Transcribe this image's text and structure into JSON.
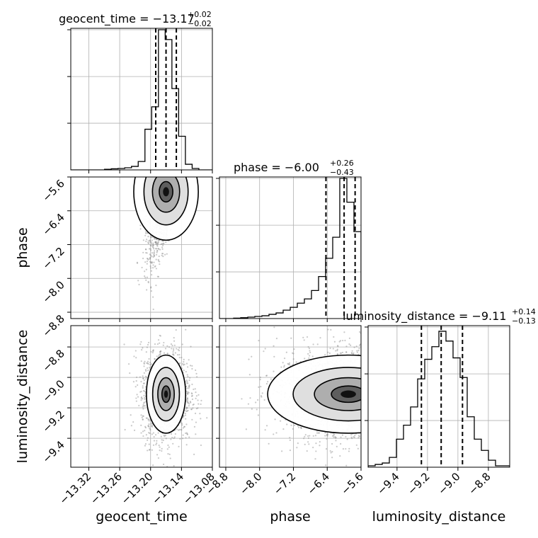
{
  "chart_data": {
    "type": "corner",
    "parameters": [
      "geocent_time",
      "phase",
      "luminosity_distance"
    ],
    "titles": [
      {
        "param": "geocent_time",
        "text": "geocent_time = −13.17",
        "plus": "+0.02",
        "minus": "−0.02"
      },
      {
        "param": "phase",
        "text": "phase = −6.00",
        "plus": "+0.26",
        "minus": "−0.43"
      },
      {
        "param": "luminosity_distance",
        "text": "luminosity_distance = −9.11",
        "plus": "+0.14",
        "minus": "−0.13"
      }
    ],
    "axis_labels": {
      "x": [
        "geocent_time",
        "phase",
        "luminosity_distance"
      ],
      "y": [
        "phase",
        "luminosity_distance"
      ]
    },
    "ranges": {
      "geocent_time": [
        -13.355,
        -13.08
      ],
      "phase": [
        -8.95,
        -5.6
      ],
      "luminosity_distance": [
        -9.59,
        -8.66
      ]
    },
    "ticks": {
      "geocent_time": {
        "values": [
          -13.32,
          -13.26,
          -13.2,
          -13.14,
          -13.08
        ],
        "labels": [
          "−13.32",
          "−13.26",
          "−13.20",
          "−13.14",
          "−13.08"
        ]
      },
      "phase": {
        "values": [
          -8.8,
          -8.0,
          -7.2,
          -6.4,
          -5.6
        ],
        "labels": [
          "−8.8",
          "−8.0",
          "−7.2",
          "−6.4",
          "−5.6"
        ]
      },
      "luminosity_distance": {
        "values": [
          -9.4,
          -9.2,
          -9.0,
          -8.8
        ],
        "labels": [
          "−9.4",
          "−9.2",
          "−9.0",
          "−8.8"
        ]
      }
    },
    "quantiles": {
      "geocent_time": [
        -13.19,
        -13.17,
        -13.15
      ],
      "phase": [
        -6.43,
        -6.0,
        -5.74
      ],
      "luminosity_distance": [
        -9.24,
        -9.11,
        -8.97
      ]
    },
    "histograms": {
      "geocent_time": [
        0,
        0,
        0,
        0,
        0,
        0.004,
        0.008,
        0.01,
        0.015,
        0.025,
        0.06,
        0.29,
        0.45,
        1.0,
        0.93,
        0.58,
        0.24,
        0.04,
        0.01,
        0,
        0
      ],
      "phase": [
        0,
        0,
        0.003,
        0.006,
        0.01,
        0.015,
        0.02,
        0.03,
        0.04,
        0.06,
        0.08,
        0.11,
        0.14,
        0.2,
        0.3,
        0.43,
        0.58,
        1.0,
        0.83,
        0.62
      ],
      "luminosity_distance": [
        0.01,
        0.02,
        0.03,
        0.07,
        0.2,
        0.3,
        0.43,
        0.63,
        0.77,
        0.86,
        0.97,
        0.9,
        0.78,
        0.64,
        0.36,
        0.2,
        0.12,
        0.05,
        0.01,
        0.01
      ]
    },
    "grid": true,
    "color": "#000000"
  }
}
